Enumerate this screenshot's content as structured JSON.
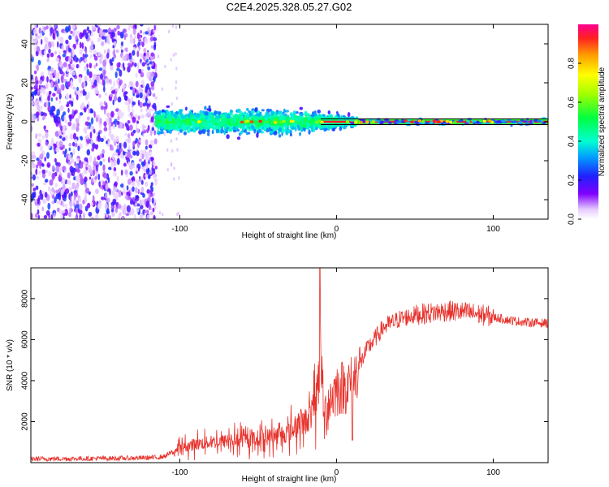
{
  "title": "C2E4.2025.328.05.27.G02",
  "chart_data": [
    {
      "type": "heatmap",
      "panel": "spectrogram",
      "xlabel": "Height of straight line (km)",
      "ylabel": "Frequency (Hz)",
      "xlim": [
        -195,
        135
      ],
      "ylim": [
        -50,
        50
      ],
      "xticks": [
        -100,
        0,
        100
      ],
      "yticks": [
        -40,
        -20,
        0,
        20,
        40
      ],
      "description_points": [
        {
          "x_range": [
            -195,
            -115
          ],
          "freq_spread": [
            -50,
            50
          ],
          "amplitude": "0.1-0.3 (noise)"
        },
        {
          "x_range": [
            -115,
            10
          ],
          "freq_spread": [
            -8,
            8
          ],
          "amplitude": "0.2-0.5, peaks near 0 Hz"
        },
        {
          "x_range": [
            10,
            135
          ],
          "freq_spread": [
            -2,
            2
          ],
          "amplitude": "up to 1.0 at 0 Hz"
        }
      ],
      "colorbar": {
        "label": "Normalized spectral amplitude",
        "range": [
          0.0,
          1.0
        ],
        "ticks": [
          "0.0",
          "0.2",
          "0.4",
          "0.6",
          "0.8"
        ]
      }
    },
    {
      "type": "line",
      "panel": "snr",
      "xlabel": "Height of straight line (km)",
      "ylabel": "SNR (10 * v/v)",
      "xlim": [
        -195,
        135
      ],
      "ylim": [
        0,
        9500
      ],
      "xticks": [
        -100,
        0,
        100
      ],
      "yticks": [
        2000,
        4000,
        6000,
        8000
      ],
      "series": [
        {
          "name": "SNR",
          "color": "#e8322c",
          "x": [
            -195,
            -160,
            -130,
            -115,
            -110,
            -100,
            -90,
            -80,
            -70,
            -60,
            -50,
            -40,
            -30,
            -25,
            -20,
            -15,
            -12,
            -10,
            -8,
            -5,
            0,
            5,
            10,
            15,
            20,
            30,
            40,
            50,
            60,
            70,
            80,
            90,
            100,
            110,
            120,
            135
          ],
          "y": [
            180,
            200,
            220,
            250,
            300,
            700,
            900,
            1000,
            1050,
            1100,
            1200,
            1300,
            1500,
            1800,
            2000,
            2500,
            3500,
            5500,
            2000,
            3000,
            3600,
            3700,
            3900,
            4800,
            5600,
            6600,
            7000,
            7200,
            7300,
            7400,
            7350,
            7250,
            7100,
            6950,
            6850,
            6800
          ]
        }
      ]
    }
  ]
}
